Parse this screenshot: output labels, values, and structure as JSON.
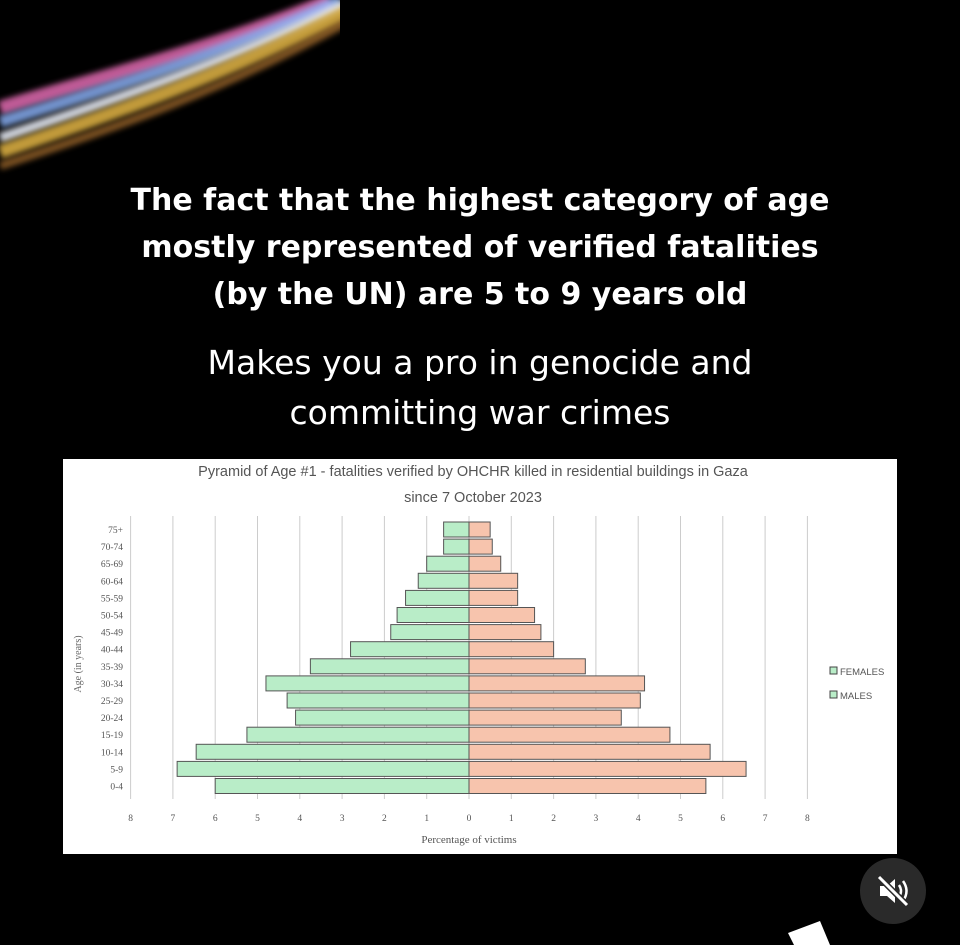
{
  "headline": {
    "lines": [
      "The fact that the highest category of age",
      "mostly represented of verified fatalities",
      "(by the UN) are 5 to 9 years old"
    ]
  },
  "subline": {
    "lines": [
      "Makes you a pro in genocide and",
      "committing war crimes"
    ]
  },
  "controls": {
    "mute_icon": "speaker-muted-icon"
  },
  "colors": {
    "males": "#b9edc8",
    "females": "#f7c4ad",
    "bar_stroke": "#555555",
    "grid": "#cccccc"
  },
  "chart_data": {
    "type": "bar",
    "orientation": "horizontal-population-pyramid",
    "title": "Pyramid of Age #1 - fatalities verified by OHCHR killed in residential buildings in Gaza",
    "subtitle": "since 7 October 2023",
    "xlabel": "Percentage of victims",
    "ylabel": "Age (in years)",
    "x_ticks_left": [
      "8",
      "7",
      "6",
      "5",
      "4",
      "3",
      "2",
      "1",
      "0"
    ],
    "x_ticks_right": [
      "1",
      "2",
      "3",
      "4",
      "5",
      "6",
      "7",
      "8"
    ],
    "xlim": [
      -8,
      8
    ],
    "grid": true,
    "legend_position": "right",
    "categories": [
      "75+",
      "70-74",
      "65-69",
      "60-64",
      "55-59",
      "50-54",
      "45-49",
      "40-44",
      "35-39",
      "30-34",
      "25-29",
      "20-24",
      "15-19",
      "10-14",
      "5-9",
      "0-4"
    ],
    "series": [
      {
        "name": "FEMALES",
        "values": [
          0.5,
          0.55,
          0.75,
          1.15,
          1.15,
          1.55,
          1.7,
          2.0,
          2.75,
          4.15,
          4.05,
          3.6,
          4.75,
          5.7,
          6.55,
          5.6
        ]
      },
      {
        "name": "MALES",
        "values": [
          0.6,
          0.6,
          1.0,
          1.2,
          1.5,
          1.7,
          1.85,
          2.8,
          3.75,
          4.8,
          4.3,
          4.1,
          5.25,
          6.45,
          6.9,
          6.0
        ]
      }
    ]
  }
}
